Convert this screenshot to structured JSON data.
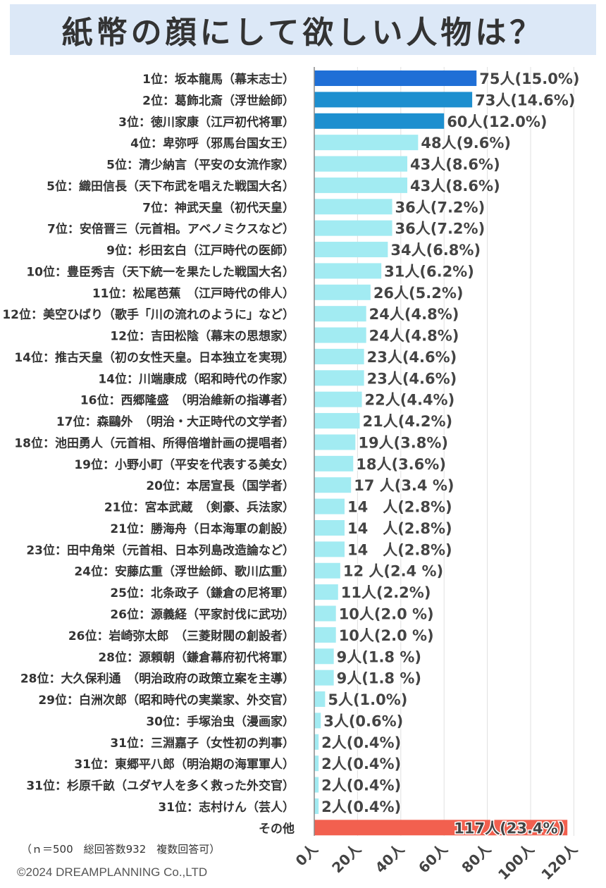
{
  "title": "紙幣の顔にして欲しい人物は？",
  "note": "（ｎ＝500　総回答数932　複数回答可）",
  "copyright": "©2024 DREAMPLANNING Co.,LTD",
  "colors": {
    "rank1": "#1f6fd6",
    "rank2_3": "#1d8fcf",
    "default": "#a2ebf2",
    "other": "#f2604f",
    "axis": "#888888"
  },
  "chart_data": {
    "type": "bar",
    "orientation": "horizontal",
    "title": "紙幣の顔にして欲しい人物は？",
    "xlim": [
      0,
      120
    ],
    "x_ticks": [
      "0人",
      "20人",
      "40人",
      "60人",
      "80人",
      "100人",
      "120人"
    ],
    "x_tick_values": [
      0,
      20,
      40,
      60,
      80,
      100,
      120
    ],
    "gridlines": true,
    "categories": [
      "1位：坂本龍馬（幕末志士）",
      "2位：葛飾北斎（浮世絵師）",
      "3位：徳川家康（江戸初代将軍）",
      "4位：卑弥呼（邪馬台国女王）",
      "5位：清少納言（平安の女流作家）",
      "5位：織田信長（天下布武を唱えた戦国大名）",
      "7位：神武天皇（初代天皇）",
      "7位：安倍晋三（元首相。アベノミクスなど）",
      "9位：杉田玄白（江戸時代の医師）",
      "10位：豊臣秀吉（天下統一を果たした戦国大名）",
      "11位：松尾芭蕉　（江戸時代の俳人）",
      "12位：美空ひばり（歌手「川の流れのように」など）",
      "12位：吉田松陰（幕末の思想家）",
      "14位：推古天皇（初の女性天皇。日本独立を実現）",
      "14位：川端康成（昭和時代の作家）",
      "16位：西郷隆盛　（明治維新の指導者）",
      "17位：森鷗外　（明治・大正時代の文学者）",
      "18位：池田勇人（元首相、所得倍増計画の提唱者）",
      "19位：小野小町（平安を代表する美女）",
      "20位：本居宣長（国学者）",
      "21位：宮本武蔵　（剣豪、兵法家）",
      "21位：勝海舟（日本海軍の創設）",
      "23位：田中角栄（元首相、日本列島改造論など）",
      "24位：安藤広重（浮世絵師、歌川広重）",
      "25位：北条政子（鎌倉の尼将軍）",
      "26位：源義経（平家討伐に武功）",
      "26位：岩崎弥太郎　（三菱財閥の創設者）",
      "28位：源頼朝（鎌倉幕府初代将軍）",
      "28位：大久保利通　（明治政府の政策立案を主導）",
      "29位：白洲次郎（昭和時代の実業家、外交官）",
      "30位：手塚治虫（漫画家）",
      "31位：三淵嘉子（女性初の判事）",
      "31位：東郷平八郎（明治期の海軍軍人）",
      "31位：杉原千畝（ユダヤ人を多く救った外交官）",
      "31位：志村けん（芸人）",
      "その他"
    ],
    "values": [
      75,
      73,
      60,
      48,
      43,
      43,
      36,
      36,
      34,
      31,
      26,
      24,
      24,
      23,
      23,
      22,
      21,
      19,
      18,
      17,
      14,
      14,
      14,
      12,
      11,
      10,
      10,
      9,
      9,
      5,
      3,
      2,
      2,
      2,
      2,
      117
    ],
    "data_labels": [
      "75人(15.0%)",
      "73人(14.6%)",
      "60人(12.0%)",
      "48人(9.6%)",
      "43人(8.6%)",
      "43人(8.6%)",
      "36人(7.2%)",
      "36人(7.2%)",
      "34人(6.8%)",
      "31人(6.2%)",
      "26人(5.2%)",
      "24人(4.8%)",
      "24人(4.8%)",
      "23人(4.6%)",
      "23人(4.6%)",
      "22人(4.4%)",
      "21人(4.2%)",
      "19人(3.8%)",
      "18人(3.6%)",
      "17 人(3.4 %)",
      "14　人(2.8%)",
      "14　人(2.8%)",
      "14　人(2.8%)",
      "12 人(2.4 %)",
      "11人(2.2%)",
      "10人(2.0 %)",
      "10人(2.0 %)",
      "9人(1.8 %)",
      "9人(1.8 %)",
      "5人(1.0%)",
      "3人(0.6%)",
      "2人(0.4%)",
      "2人(0.4%)",
      "2人(0.4%)",
      "2人(0.4%)",
      "117人(23.4%)"
    ]
  }
}
